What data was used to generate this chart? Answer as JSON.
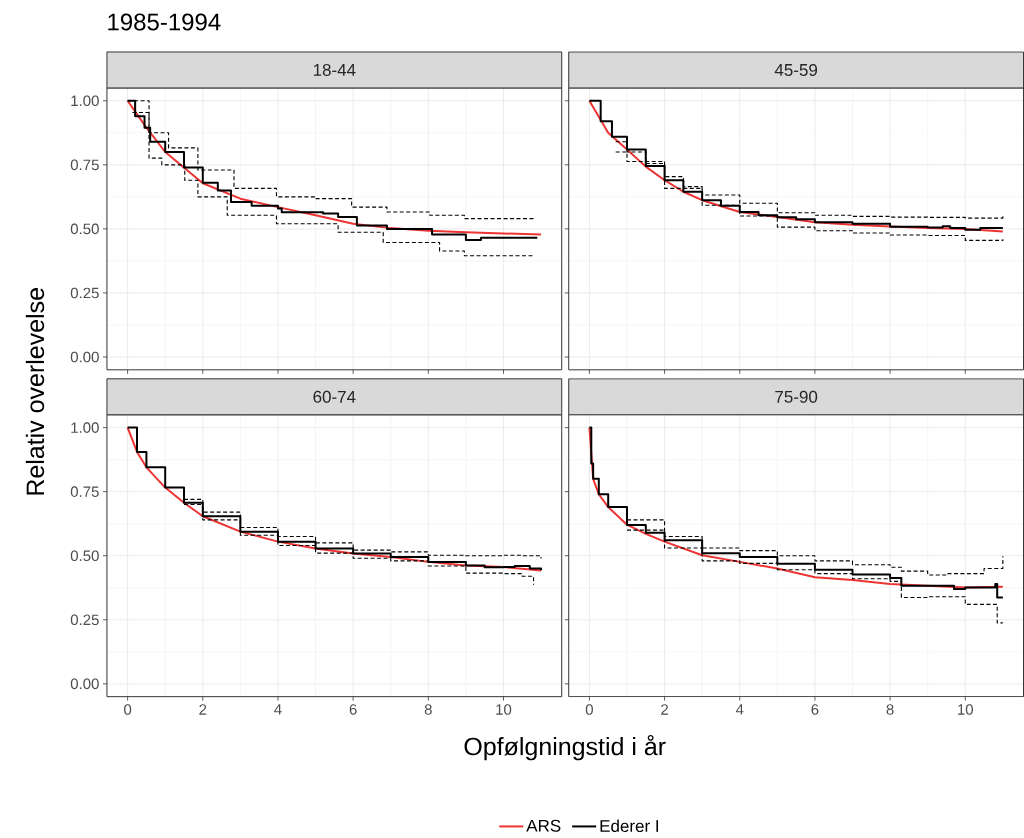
{
  "chart_data": [
    {
      "type": "line",
      "title": "1985-1994",
      "subtitle": "18-44",
      "xlabel": "Opfølgningstid i år",
      "ylabel": "Relativ overlevelse",
      "xlim": [
        -0.55,
        11.55
      ],
      "ylim": [
        -0.05,
        1.05
      ],
      "xticks": [
        0,
        2,
        4,
        6,
        8,
        10
      ],
      "yticks": [
        {
          "value": 0,
          "label": "0.00"
        },
        {
          "value": 0.25,
          "label": "0.25"
        },
        {
          "value": 0.5,
          "label": "0.50"
        },
        {
          "value": 0.75,
          "label": "0.75"
        },
        {
          "value": 1,
          "label": "1.00"
        }
      ],
      "grid": true,
      "legend": "bottom",
      "tick_labels": "y",
      "series": [
        {
          "name": "ARS",
          "color": "#ee3333",
          "line_style": "solid",
          "x": [
            0,
            0.5,
            1,
            2,
            3,
            4,
            5,
            6,
            7,
            8,
            9,
            10,
            11
          ],
          "values": [
            1.0,
            0.895,
            0.8,
            0.678,
            0.618,
            0.585,
            0.553,
            0.52,
            0.503,
            0.493,
            0.487,
            0.482,
            0.478
          ]
        },
        {
          "name": "Ederer I",
          "color": "#000000",
          "type": "step",
          "line_style": "solid",
          "x": [
            0,
            0.2,
            0.45,
            0.6,
            1,
            1.5,
            2,
            2.4,
            2.75,
            3.3,
            4,
            4.1,
            5.2,
            5.6,
            6.1,
            6.9,
            8.1,
            9.0,
            9.4,
            10.9
          ],
          "values": [
            1.0,
            0.94,
            0.895,
            0.84,
            0.8,
            0.74,
            0.68,
            0.65,
            0.605,
            0.59,
            0.58,
            0.565,
            0.56,
            0.546,
            0.513,
            0.5,
            0.478,
            0.457,
            0.465,
            0.465
          ]
        },
        {
          "color": "#000000",
          "type": "step",
          "line_style": "dashed",
          "x": [
            0,
            0.57,
            1.09,
            1.87,
            2.83,
            3.96,
            5,
            5.96,
            6.9,
            8.04,
            8.96,
            10.8
          ],
          "values": [
            1.0,
            0.875,
            0.816,
            0.73,
            0.658,
            0.625,
            0.618,
            0.585,
            0.566,
            0.553,
            0.54,
            0.54
          ]
        },
        {
          "color": "#000000",
          "type": "step",
          "line_style": "dashed",
          "x": [
            0.13,
            0.57,
            0.91,
            1.52,
            1.87,
            2.65,
            3.96,
            5.6,
            6.8,
            8.3,
            8.96,
            10.8
          ],
          "values": [
            0.954,
            0.776,
            0.75,
            0.69,
            0.625,
            0.553,
            0.52,
            0.487,
            0.447,
            0.414,
            0.395,
            0.395
          ]
        }
      ]
    },
    {
      "type": "line",
      "subtitle": "45-59",
      "xlim": [
        -0.55,
        11.55
      ],
      "ylim": [
        -0.05,
        1.05
      ],
      "xticks": [
        0,
        2,
        4,
        6,
        8,
        10
      ],
      "yticks": [
        0,
        0.25,
        0.5,
        0.75,
        1
      ],
      "grid": true,
      "tick_labels": false,
      "series": [
        {
          "color": "#ee3333",
          "line_style": "solid",
          "x": [
            0,
            0.5,
            1,
            1.5,
            2,
            2.5,
            3,
            4,
            5,
            6,
            7,
            8,
            9,
            10,
            11
          ],
          "values": [
            1.0,
            0.875,
            0.81,
            0.743,
            0.69,
            0.645,
            0.612,
            0.566,
            0.546,
            0.526,
            0.516,
            0.509,
            0.503,
            0.5,
            0.49
          ]
        },
        {
          "color": "#000000",
          "type": "step",
          "line_style": "solid",
          "x": [
            0,
            0.3,
            0.6,
            1,
            1.5,
            2,
            2.5,
            3,
            3.5,
            4,
            4.5,
            5,
            5.5,
            6,
            7,
            8,
            9,
            9.4,
            9.6,
            10,
            10.4,
            11
          ],
          "values": [
            1.0,
            0.92,
            0.86,
            0.81,
            0.745,
            0.69,
            0.645,
            0.612,
            0.59,
            0.566,
            0.553,
            0.545,
            0.538,
            0.526,
            0.52,
            0.508,
            0.505,
            0.51,
            0.503,
            0.497,
            0.503,
            0.503
          ]
        },
        {
          "color": "#000000",
          "type": "step",
          "line_style": "dashed",
          "x": [
            0.7,
            1,
            1.5,
            2,
            2.5,
            3,
            4,
            5,
            6,
            7,
            8,
            9,
            10,
            11
          ],
          "values": [
            0.84,
            0.8,
            0.755,
            0.704,
            0.665,
            0.632,
            0.6,
            0.563,
            0.553,
            0.549,
            0.546,
            0.545,
            0.542,
            0.55
          ]
        },
        {
          "color": "#000000",
          "type": "step",
          "line_style": "dashed",
          "x": [
            0.7,
            1,
            2,
            3,
            4,
            5,
            6,
            7,
            8,
            9,
            10,
            11
          ],
          "values": [
            0.8,
            0.763,
            0.658,
            0.592,
            0.55,
            0.507,
            0.493,
            0.484,
            0.476,
            0.474,
            0.455,
            0.46
          ]
        }
      ]
    },
    {
      "type": "line",
      "subtitle": "60-74",
      "xlim": [
        -0.55,
        11.55
      ],
      "ylim": [
        -0.05,
        1.05
      ],
      "xticks": [
        0,
        2,
        4,
        6,
        8,
        10
      ],
      "yticks": [
        {
          "value": 0,
          "label": "0.00"
        },
        {
          "value": 0.25,
          "label": "0.25"
        },
        {
          "value": 0.5,
          "label": "0.50"
        },
        {
          "value": 0.75,
          "label": "0.75"
        },
        {
          "value": 1,
          "label": "1.00"
        }
      ],
      "grid": true,
      "series": [
        {
          "color": "#ee3333",
          "line_style": "solid",
          "x": [
            0,
            0.25,
            0.5,
            1,
            1.5,
            2,
            3,
            4,
            5,
            6,
            7,
            8,
            9,
            10,
            11
          ],
          "values": [
            1.0,
            0.905,
            0.845,
            0.766,
            0.707,
            0.654,
            0.594,
            0.555,
            0.528,
            0.509,
            0.495,
            0.476,
            0.462,
            0.456,
            0.442
          ]
        },
        {
          "color": "#000000",
          "type": "step",
          "line_style": "solid",
          "x": [
            0,
            0.25,
            0.5,
            1,
            1.5,
            2,
            3,
            4,
            5,
            6,
            7,
            8,
            9,
            9.5,
            10,
            10.3,
            10.7,
            11
          ],
          "values": [
            1.0,
            0.905,
            0.845,
            0.766,
            0.707,
            0.654,
            0.594,
            0.555,
            0.528,
            0.509,
            0.495,
            0.476,
            0.462,
            0.455,
            0.456,
            0.46,
            0.45,
            0.443
          ]
        },
        {
          "color": "#000000",
          "type": "step",
          "line_style": "dashed",
          "x": [
            1.5,
            2,
            3,
            4,
            5,
            6,
            7,
            8,
            9,
            10,
            10.5,
            11
          ],
          "values": [
            0.72,
            0.67,
            0.61,
            0.575,
            0.55,
            0.522,
            0.515,
            0.502,
            0.5,
            0.502,
            0.5,
            0.489
          ]
        },
        {
          "color": "#000000",
          "type": "step",
          "line_style": "dashed",
          "x": [
            1.5,
            2,
            3,
            4,
            5,
            6,
            7,
            8,
            9,
            10,
            10.5,
            10.8
          ],
          "values": [
            0.7,
            0.64,
            0.58,
            0.54,
            0.51,
            0.49,
            0.48,
            0.46,
            0.432,
            0.43,
            0.42,
            0.387
          ]
        }
      ]
    },
    {
      "type": "line",
      "subtitle": "75-90",
      "xlim": [
        -0.55,
        11.55
      ],
      "ylim": [
        -0.05,
        1.05
      ],
      "xticks": [
        0,
        2,
        4,
        6,
        8,
        10
      ],
      "yticks": [
        0,
        0.25,
        0.5,
        0.75,
        1
      ],
      "grid": true,
      "tick_labels": "x",
      "series": [
        {
          "color": "#ee3333",
          "line_style": "solid",
          "x": [
            0,
            0.05,
            0.1,
            0.25,
            0.5,
            1,
            1.5,
            2,
            3,
            4,
            5,
            6,
            7,
            8,
            9,
            10,
            11
          ],
          "values": [
            1.0,
            0.9,
            0.8,
            0.74,
            0.69,
            0.621,
            0.585,
            0.555,
            0.502,
            0.476,
            0.45,
            0.416,
            0.405,
            0.39,
            0.383,
            0.376,
            0.379
          ]
        },
        {
          "color": "#000000",
          "type": "step",
          "line_style": "solid",
          "x": [
            0,
            0.05,
            0.1,
            0.25,
            0.5,
            1,
            1.5,
            2,
            3,
            4,
            5,
            6,
            7,
            8,
            8.3,
            9,
            9.7,
            10,
            10.8,
            10.85,
            11
          ],
          "values": [
            1.0,
            0.86,
            0.8,
            0.74,
            0.69,
            0.62,
            0.59,
            0.56,
            0.51,
            0.495,
            0.469,
            0.445,
            0.427,
            0.413,
            0.383,
            0.383,
            0.37,
            0.376,
            0.39,
            0.337,
            0.337
          ]
        },
        {
          "color": "#000000",
          "type": "step",
          "line_style": "dashed",
          "x": [
            1,
            2,
            3,
            4,
            5,
            6,
            7,
            8,
            8.3,
            9,
            9.5,
            10,
            10.5,
            11
          ],
          "values": [
            0.64,
            0.575,
            0.53,
            0.52,
            0.5,
            0.48,
            0.465,
            0.455,
            0.44,
            0.425,
            0.43,
            0.43,
            0.45,
            0.498
          ]
        },
        {
          "color": "#000000",
          "type": "step",
          "line_style": "dashed",
          "x": [
            1,
            2,
            3,
            4,
            5,
            6,
            7,
            8,
            8.3,
            9,
            10,
            10.8,
            10.85,
            11
          ],
          "values": [
            0.6,
            0.53,
            0.48,
            0.47,
            0.445,
            0.43,
            0.41,
            0.4,
            0.337,
            0.34,
            0.31,
            0.31,
            0.238,
            0.238
          ]
        }
      ]
    }
  ]
}
